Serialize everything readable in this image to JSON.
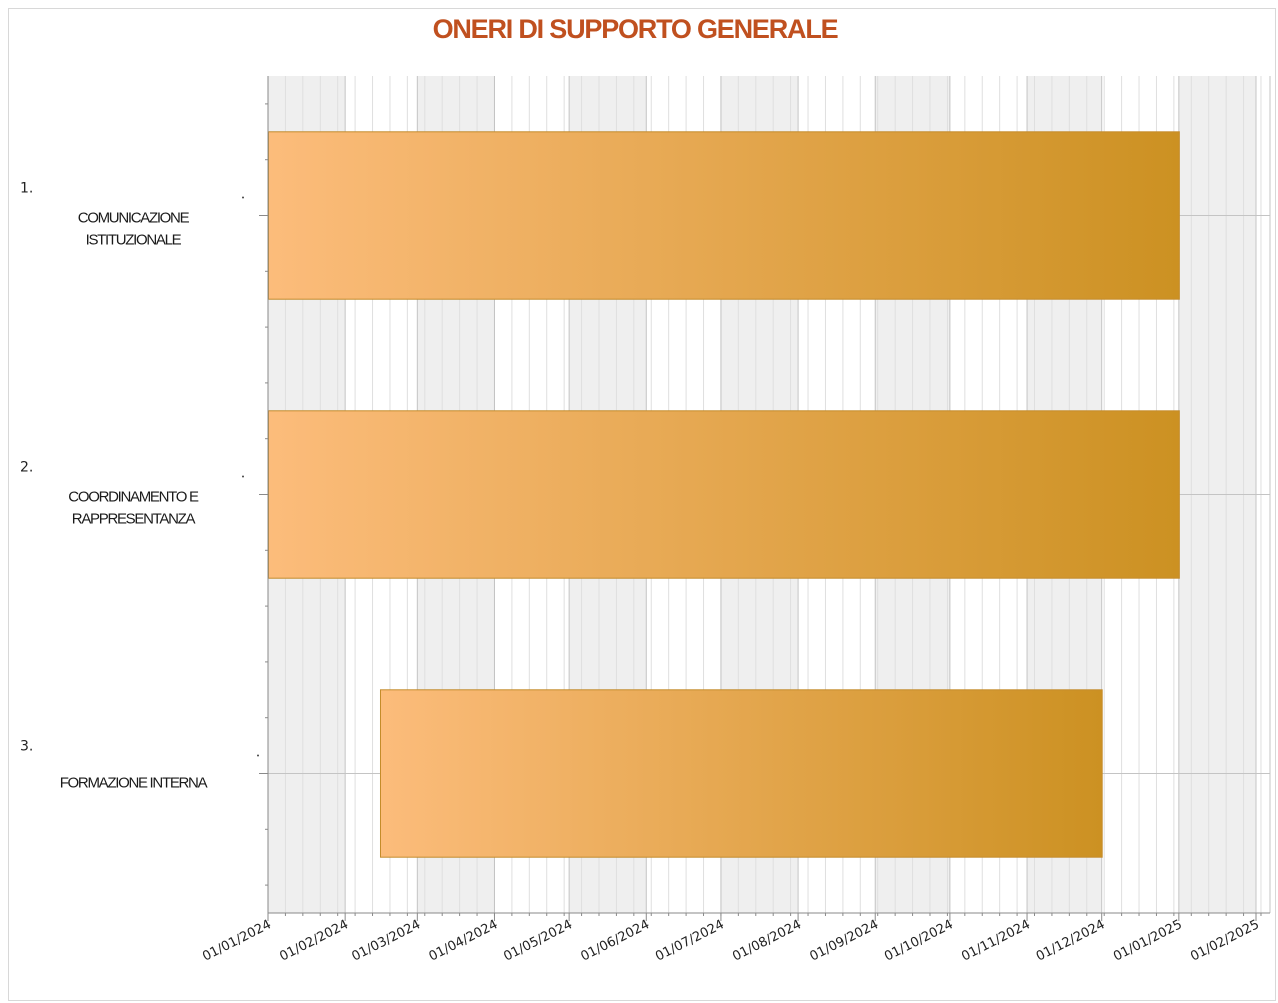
{
  "chart_data": {
    "type": "bar",
    "orientation": "horizontal",
    "title": "ONERI DI SUPPORTO GENERALE",
    "x_axis": {
      "kind": "date",
      "ticks": [
        "01/01/2024",
        "01/02/2024",
        "01/03/2024",
        "01/04/2024",
        "01/05/2024",
        "01/06/2024",
        "01/07/2024",
        "01/08/2024",
        "01/09/2024",
        "01/10/2024",
        "01/11/2024",
        "01/12/2024",
        "01/01/2025",
        "01/02/2025"
      ],
      "range": [
        "01/01/2024",
        "01/02/2025"
      ]
    },
    "categories": [
      {
        "number": "1.",
        "lines": [
          "COMUNICAZIONE",
          "ISTITUZIONALE"
        ]
      },
      {
        "number": "2.",
        "lines": [
          "COORDINAMENTO E",
          "RAPPRESENTANZA"
        ]
      },
      {
        "number": "3.",
        "lines": [
          "FORMAZIONE INTERNA"
        ]
      }
    ],
    "tasks": [
      {
        "start": "01/01/2024",
        "end": "01/01/2025"
      },
      {
        "start": "01/01/2024",
        "end": "01/01/2025"
      },
      {
        "start": "15/02/2024",
        "end": "01/12/2024"
      }
    ],
    "grid": true,
    "legend": "none"
  },
  "colors": {
    "title": "#c0501f",
    "bar_start": "#fcbc7b",
    "bar_end": "#cc9122",
    "bar_border": "#c48b2a",
    "band_shade": "#efefef",
    "grid_minor": "#dfdfdf",
    "grid_major": "#c4c4c4",
    "axis": "#8a8a8a"
  }
}
